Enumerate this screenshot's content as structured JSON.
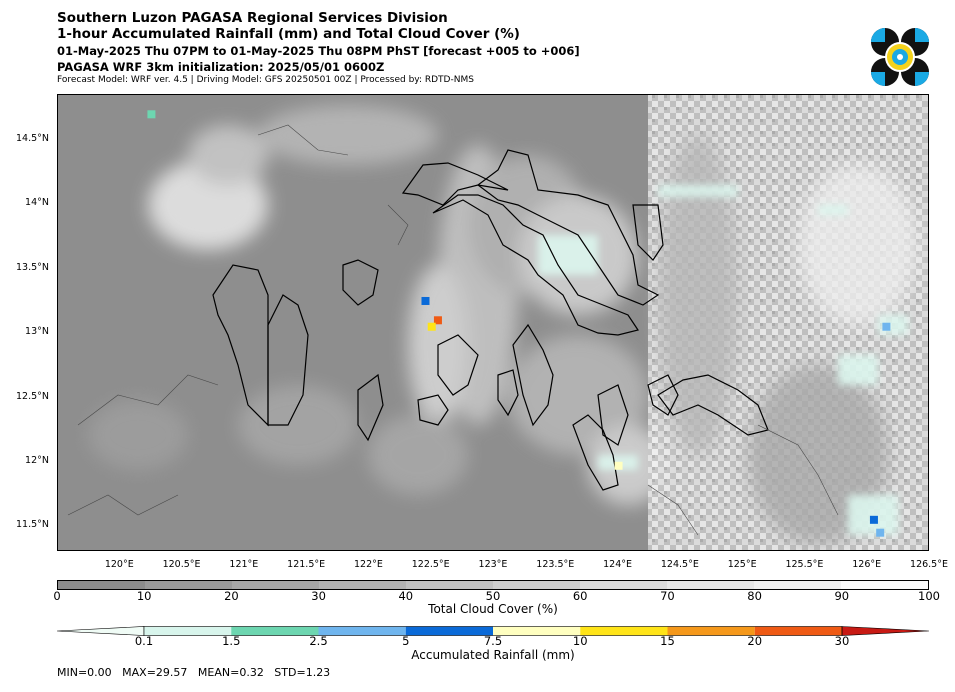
{
  "header": {
    "line1": "Southern Luzon PAGASA Regional Services Division",
    "line2": "1-hour Accumulated Rainfall (mm) and Total Cloud Cover (%)",
    "line3": "01-May-2025 Thu 07PM to 01-May-2025 Thu 08PM PhST [forecast +005 to +006]",
    "line4": "PAGASA WRF 3km initialization: 2025/05/01 0600Z",
    "line5": "Forecast Model: WRF ver. 4.5 | Driving Model: GFS 20250501 00Z | Processed by: RDTD-NMS"
  },
  "map": {
    "lon_range": [
      119.5,
      126.5
    ],
    "lat_range": [
      11.3,
      14.85
    ],
    "lat_labels": [
      "14.5°N",
      "14°N",
      "13.5°N",
      "13°N",
      "12.5°N",
      "12°N",
      "11.5°N"
    ],
    "lat_values": [
      14.5,
      14.0,
      13.5,
      13.0,
      12.5,
      12.0,
      11.5
    ],
    "lon_labels": [
      "120°E",
      "120.5°E",
      "121°E",
      "121.5°E",
      "122°E",
      "122.5°E",
      "123°E",
      "123.5°E",
      "124°E",
      "124.5°E",
      "125°E",
      "125.5°E",
      "126°E",
      "126.5°E"
    ],
    "lon_values": [
      120.0,
      120.5,
      121.0,
      121.5,
      122.0,
      122.5,
      123.0,
      123.5,
      124.0,
      124.5,
      125.0,
      125.5,
      126.0,
      126.5
    ],
    "rain_cells": [
      {
        "lon": 122.55,
        "lat": 13.1,
        "mm": 29.57
      },
      {
        "lon": 122.5,
        "lat": 13.05,
        "mm": 12
      },
      {
        "lon": 122.45,
        "lat": 13.25,
        "mm": 6
      },
      {
        "lon": 124.0,
        "lat": 11.97,
        "mm": 8
      },
      {
        "lon": 126.05,
        "lat": 11.55,
        "mm": 5
      },
      {
        "lon": 126.1,
        "lat": 11.45,
        "mm": 3
      },
      {
        "lon": 126.15,
        "lat": 13.05,
        "mm": 3
      },
      {
        "lon": 120.25,
        "lat": 14.7,
        "mm": 2
      }
    ]
  },
  "cloud_colorbar": {
    "label": "Total Cloud Cover (%)",
    "ticks": [
      "0",
      "10",
      "20",
      "30",
      "40",
      "50",
      "60",
      "70",
      "80",
      "90",
      "100"
    ],
    "colors": [
      "#8c8c8c",
      "#999999",
      "#a6a6a6",
      "#b3b3b3",
      "#c0c0c0",
      "#cdcdcd",
      "#dadada",
      "#e6e6e6",
      "#f0f0f0",
      "#fafafa"
    ]
  },
  "rain_colorbar": {
    "label": "Accumulated Rainfall (mm)",
    "ticks": [
      "0.1",
      "1.5",
      "2.5",
      "5",
      "7.5",
      "10",
      "15",
      "20",
      "30"
    ],
    "colors": [
      "#f0fcf6",
      "#d8f5ec",
      "#6dd6b0",
      "#6fb5ee",
      "#0a6ad8",
      "#ffffc0",
      "#ffe418",
      "#f5981a",
      "#ef5a14",
      "#c81a14"
    ]
  },
  "stats": "MIN=0.00   MAX=29.57   MEAN=0.32   STD=1.23"
}
